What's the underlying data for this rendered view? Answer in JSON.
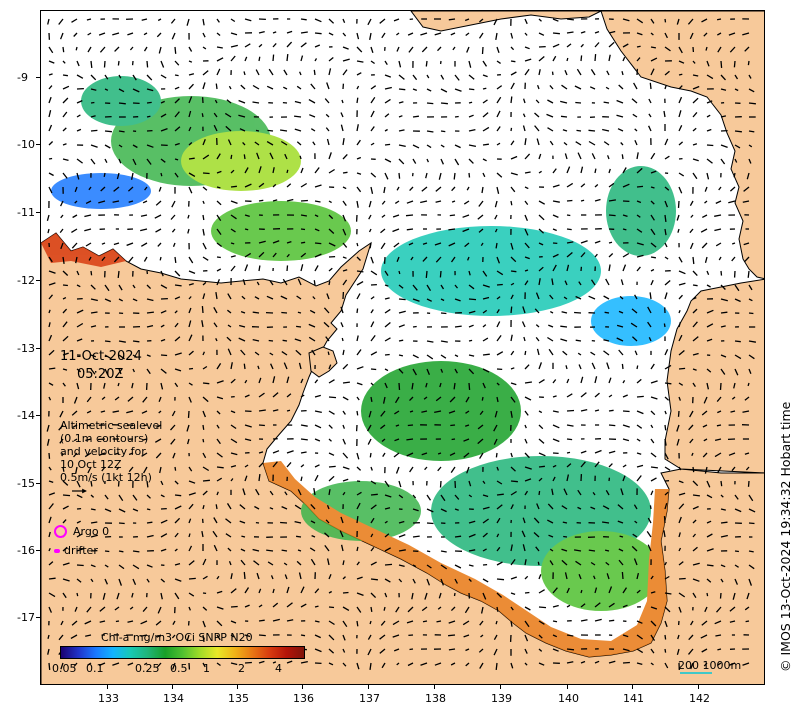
{
  "map": {
    "date": "11-Oct-2024",
    "time": "05:20Z",
    "altimetry_lines": [
      "Altimetric sealevel",
      "(0.1m contours)",
      "and velocity for",
      "10 Oct 12Z",
      "0.5m/s (1kt 12h)"
    ],
    "argo_label": "Argo 0",
    "drifter_label": "drifter",
    "colorbar_title": "Chl-a mg/m3 OCi SNPP N20",
    "colorbar_ticks": [
      "0.05",
      "0.1",
      "0.25",
      "0.5",
      "1",
      "2",
      "4"
    ],
    "scale_label": "200  1000m",
    "credit": "© IMOS 13-Oct-2024 19:34:32 Hobart time",
    "lon_ticks": [
      "133",
      "134",
      "135",
      "136",
      "137",
      "138",
      "139",
      "140",
      "141",
      "142"
    ],
    "lat_ticks": [
      "-9",
      "-10",
      "-11",
      "-12",
      "-13",
      "-14",
      "-15",
      "-16",
      "-17"
    ],
    "colors": {
      "land": "#f7c99a",
      "sea": "#ffffff",
      "argo": "#ff00ff",
      "scale_bar": "#40c8c8"
    }
  }
}
